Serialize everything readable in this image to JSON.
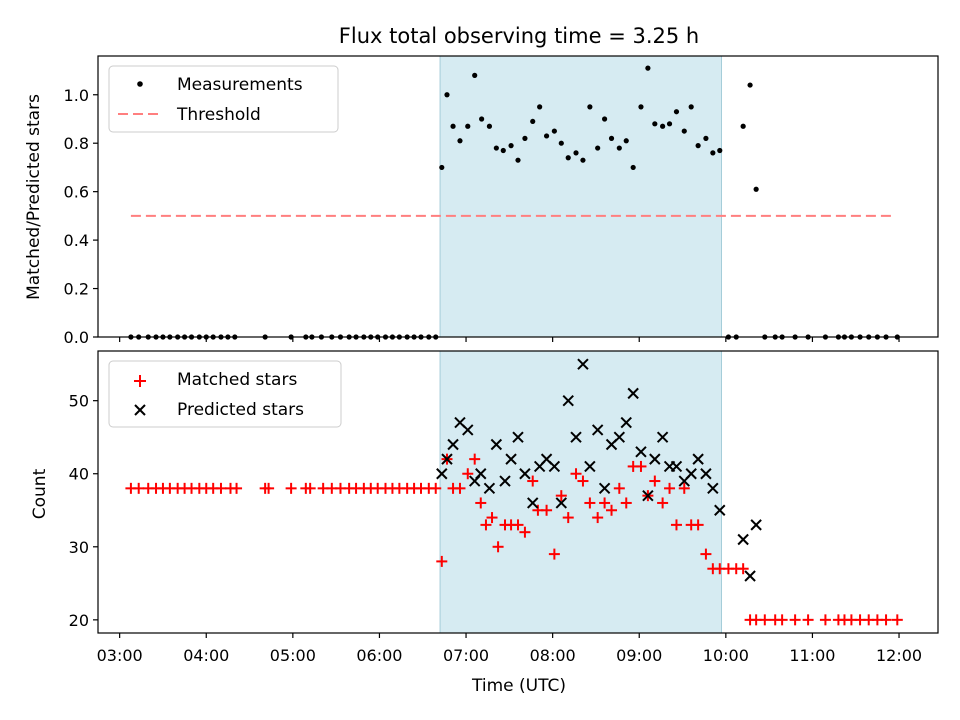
{
  "chart_data": [
    {
      "type": "scatter",
      "title": "Flux total observing time = 3.25 h",
      "xlabel": "",
      "ylabel": "Matched/Predicted stars",
      "xlim": [
        2.75,
        12.45
      ],
      "ylim": [
        0,
        1.16
      ],
      "xticks": [
        3,
        4,
        5,
        6,
        7,
        8,
        9,
        10,
        11,
        12
      ],
      "yticks": [
        0.0,
        0.2,
        0.4,
        0.6,
        0.8,
        1.0
      ],
      "ytick_labels": [
        "0.0",
        "0.2",
        "0.4",
        "0.6",
        "0.8",
        "1.0"
      ],
      "highlight_span": [
        6.7,
        9.95
      ],
      "threshold": {
        "name": "Threshold",
        "value": 0.5,
        "x": [
          3.13,
          11.95
        ],
        "color": "#ff7f7f"
      },
      "legend": [
        "Measurements",
        "Threshold"
      ],
      "legend_position": "upper-left",
      "series": [
        {
          "name": "Measurements",
          "color": "#000000",
          "x": [
            3.13,
            3.22,
            3.33,
            3.42,
            3.5,
            3.58,
            3.67,
            3.75,
            3.83,
            3.92,
            4.0,
            4.08,
            4.17,
            4.25,
            4.33,
            4.68,
            4.98,
            5.15,
            5.22,
            5.33,
            5.45,
            5.55,
            5.65,
            5.73,
            5.82,
            5.9,
            5.98,
            6.07,
            6.15,
            6.23,
            6.32,
            6.4,
            6.48,
            6.57,
            6.65,
            6.72,
            6.78,
            6.85,
            6.93,
            7.02,
            7.1,
            7.18,
            7.27,
            7.35,
            7.43,
            7.52,
            7.6,
            7.68,
            7.77,
            7.85,
            7.93,
            8.02,
            8.1,
            8.18,
            8.27,
            8.35,
            8.43,
            8.52,
            8.6,
            8.68,
            8.77,
            8.85,
            8.93,
            9.02,
            9.1,
            9.18,
            9.27,
            9.35,
            9.43,
            9.52,
            9.6,
            9.68,
            9.77,
            9.85,
            9.93,
            10.03,
            10.12,
            10.2,
            10.28,
            10.35,
            10.45,
            10.57,
            10.65,
            10.8,
            10.95,
            11.15,
            11.3,
            11.37,
            11.45,
            11.55,
            11.65,
            11.75,
            11.85,
            11.98
          ],
          "y": [
            0,
            0,
            0,
            0,
            0,
            0,
            0,
            0,
            0,
            0,
            0,
            0,
            0,
            0,
            0,
            0,
            0,
            0,
            0,
            0,
            0,
            0,
            0,
            0,
            0,
            0,
            0,
            0,
            0,
            0,
            0,
            0,
            0,
            0,
            0,
            0.7,
            1.0,
            0.87,
            0.81,
            0.87,
            1.08,
            0.9,
            0.87,
            0.78,
            0.77,
            0.79,
            0.73,
            0.82,
            0.89,
            0.95,
            0.83,
            0.85,
            0.8,
            0.74,
            0.76,
            0.73,
            0.95,
            0.78,
            0.9,
            0.82,
            0.78,
            0.81,
            0.7,
            0.95,
            1.11,
            0.88,
            0.87,
            0.88,
            0.93,
            0.85,
            0.95,
            0.79,
            0.82,
            0.76,
            0.77,
            0,
            0,
            0.87,
            1.04,
            0.61,
            0,
            0,
            0,
            0,
            0,
            0,
            0,
            0,
            0,
            0,
            0,
            0,
            0,
            0
          ]
        }
      ]
    },
    {
      "type": "scatter",
      "title": "",
      "xlabel": "Time (UTC)",
      "ylabel": "Count",
      "xlim": [
        2.75,
        12.45
      ],
      "ylim": [
        18.2,
        56.8
      ],
      "xticks": [
        3,
        4,
        5,
        6,
        7,
        8,
        9,
        10,
        11,
        12
      ],
      "xtick_labels": [
        "03:00",
        "04:00",
        "05:00",
        "06:00",
        "07:00",
        "08:00",
        "09:00",
        "10:00",
        "11:00",
        "12:00"
      ],
      "yticks": [
        20,
        30,
        40,
        50
      ],
      "ytick_labels": [
        "20",
        "30",
        "40",
        "50"
      ],
      "highlight_span": [
        6.7,
        9.95
      ],
      "legend": [
        "Matched stars",
        "Predicted stars"
      ],
      "legend_position": "upper-left",
      "series": [
        {
          "name": "Matched stars",
          "marker": "+",
          "color": "#ff0000",
          "x": [
            3.13,
            3.22,
            3.33,
            3.42,
            3.5,
            3.58,
            3.67,
            3.75,
            3.83,
            3.92,
            4.0,
            4.08,
            4.17,
            4.28,
            4.35,
            4.68,
            4.72,
            4.98,
            5.15,
            5.2,
            5.35,
            5.45,
            5.55,
            5.65,
            5.73,
            5.82,
            5.9,
            5.98,
            6.07,
            6.15,
            6.23,
            6.32,
            6.4,
            6.48,
            6.57,
            6.65,
            6.72,
            6.78,
            6.85,
            6.93,
            7.02,
            7.1,
            7.17,
            7.23,
            7.3,
            7.37,
            7.45,
            7.52,
            7.6,
            7.68,
            7.77,
            7.83,
            7.93,
            8.02,
            8.1,
            8.18,
            8.27,
            8.35,
            8.43,
            8.52,
            8.6,
            8.68,
            8.77,
            8.85,
            8.93,
            9.02,
            9.1,
            9.18,
            9.27,
            9.35,
            9.43,
            9.52,
            9.6,
            9.68,
            9.77,
            9.85,
            9.93,
            10.03,
            10.12,
            10.2,
            10.28,
            10.35,
            10.45,
            10.57,
            10.65,
            10.8,
            10.95,
            11.15,
            11.3,
            11.37,
            11.45,
            11.55,
            11.65,
            11.75,
            11.85,
            11.98
          ],
          "y": [
            38,
            38,
            38,
            38,
            38,
            38,
            38,
            38,
            38,
            38,
            38,
            38,
            38,
            38,
            38,
            38,
            38,
            38,
            38,
            38,
            38,
            38,
            38,
            38,
            38,
            38,
            38,
            38,
            38,
            38,
            38,
            38,
            38,
            38,
            38,
            38,
            28,
            42,
            38,
            38,
            40,
            42,
            36,
            33,
            34,
            30,
            33,
            33,
            33,
            32,
            39,
            35,
            35,
            29,
            37,
            34,
            40,
            39,
            36,
            34,
            36,
            35,
            38,
            36,
            41,
            41,
            37,
            39,
            36,
            38,
            33,
            38,
            33,
            33,
            29,
            27,
            27,
            27,
            27,
            27,
            20,
            20,
            20,
            20,
            20,
            20,
            20,
            20,
            20,
            20,
            20,
            20,
            20,
            20,
            20,
            20
          ]
        },
        {
          "name": "Predicted stars",
          "marker": "x",
          "color": "#000000",
          "x": [
            6.72,
            6.78,
            6.85,
            6.93,
            7.02,
            7.1,
            7.17,
            7.27,
            7.35,
            7.45,
            7.52,
            7.6,
            7.68,
            7.77,
            7.85,
            7.93,
            8.02,
            8.1,
            8.18,
            8.27,
            8.35,
            8.43,
            8.52,
            8.6,
            8.68,
            8.77,
            8.85,
            8.93,
            9.02,
            9.1,
            9.18,
            9.27,
            9.35,
            9.43,
            9.52,
            9.6,
            9.68,
            9.77,
            9.85,
            9.93,
            10.2,
            10.28,
            10.35
          ],
          "y": [
            40,
            42,
            44,
            47,
            46,
            39,
            40,
            38,
            44,
            39,
            42,
            45,
            40,
            36,
            41,
            42,
            41,
            36,
            50,
            45,
            55,
            41,
            46,
            38,
            44,
            45,
            47,
            51,
            43,
            37,
            42,
            45,
            41,
            41,
            39,
            40,
            42,
            40,
            38,
            35,
            31,
            26,
            33
          ]
        }
      ]
    }
  ]
}
